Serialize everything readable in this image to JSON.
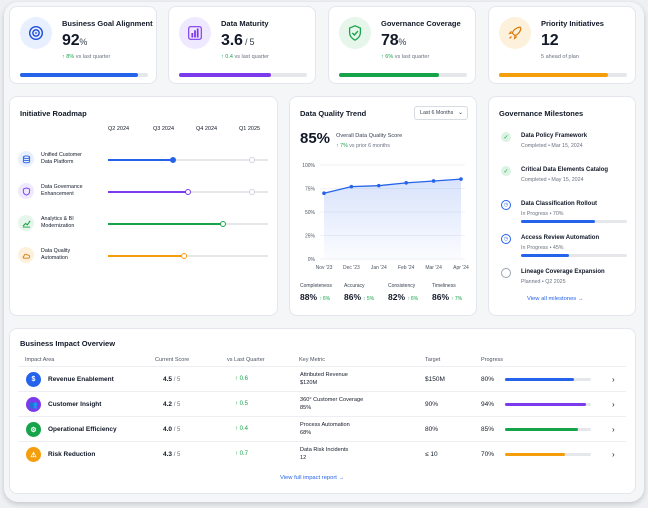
{
  "kpis": [
    {
      "title": "Business Goal Alignment",
      "value": "92",
      "unit": "%",
      "delta": "↑ 8%",
      "sub": " vs last quarter",
      "progress": 0.92,
      "color": "#2563eb",
      "icon": "target-icon"
    },
    {
      "title": "Data Maturity",
      "value": "3.6",
      "unit": " / 5",
      "delta": "↑ 0.4",
      "sub": " vs last quarter",
      "progress": 0.72,
      "color": "#7c3aed",
      "icon": "bar-chart-icon"
    },
    {
      "title": "Governance Coverage",
      "value": "78",
      "unit": "%",
      "delta": "↑ 6%",
      "sub": " vs last quarter",
      "progress": 0.78,
      "color": "#16a34a",
      "icon": "shield-check-icon"
    },
    {
      "title": "Priority Initiatives",
      "value": "12",
      "unit": "",
      "delta": "",
      "sub": "5 ahead of plan",
      "progress": 0.85,
      "color": "#f59e0b",
      "icon": "rocket-icon"
    }
  ],
  "roadmap": {
    "title": "Initiative Roadmap",
    "quarters": [
      "Q2 2024",
      "Q3 2024",
      "Q4 2024",
      "Q1 2025"
    ],
    "items": [
      {
        "label1": "Unified Customer",
        "label2": "Data Platform",
        "color": "#2563eb",
        "progress": 0.41,
        "icon": "database-icon"
      },
      {
        "label1": "Data Governance",
        "label2": "Enhancement",
        "color": "#7c3aed",
        "progress": 0.51,
        "icon": "shield-icon"
      },
      {
        "label1": "Analytics & BI",
        "label2": "Modernization",
        "color": "#16a34a",
        "progress": 0.72,
        "icon": "trend-icon"
      },
      {
        "label1": "Data Quality",
        "label2": "Automation",
        "color": "#f59e0b",
        "progress": 0.48,
        "icon": "cloud-icon"
      }
    ]
  },
  "quality": {
    "title": "Data Quality Trend",
    "range": "Last 6 Months",
    "score": "85%",
    "score_label": "Overall Data Quality Score",
    "delta": "↑ 7%",
    "delta_sub": " vs prior 6 months",
    "metrics": [
      {
        "name": "Completeness",
        "value": "88%",
        "delta": "↑ 6%"
      },
      {
        "name": "Accuracy",
        "value": "86%",
        "delta": "↑ 5%"
      },
      {
        "name": "Consistency",
        "value": "82%",
        "delta": "↑ 6%"
      },
      {
        "name": "Timeliness",
        "value": "86%",
        "delta": "↑ 7%"
      }
    ]
  },
  "chart_data": {
    "type": "area",
    "x": [
      "Nov '23",
      "Dec '23",
      "Jan '24",
      "Feb '24",
      "Mar '24",
      "Apr '24"
    ],
    "y_ticks": [
      "100%",
      "75%",
      "50%",
      "25%",
      "0%"
    ],
    "ylim": [
      0,
      100
    ],
    "values": [
      70,
      77,
      78,
      81,
      83,
      85
    ]
  },
  "milestones": {
    "title": "Governance Milestones",
    "link": "View all milestones",
    "items": [
      {
        "name": "Data Policy Framework",
        "status": "Completed",
        "detail": "  •  Mar 15, 2024",
        "kind": "done",
        "progress": null
      },
      {
        "name": "Critical Data Elements Catalog",
        "status": "Completed",
        "detail": "  •  May 15, 2024",
        "kind": "done",
        "progress": null
      },
      {
        "name": "Data Classification Rollout",
        "status": "In Progress",
        "detail": "  •  70%",
        "kind": "progress",
        "progress": 0.7
      },
      {
        "name": "Access Review Automation",
        "status": "In Progress",
        "detail": "  •  45%",
        "kind": "progress",
        "progress": 0.45
      },
      {
        "name": "Lineage Coverage Expansion",
        "status": "Planned",
        "detail": "  •  Q2 2025",
        "kind": "planned",
        "progress": null
      }
    ]
  },
  "impact": {
    "title": "Business Impact Overview",
    "headers": [
      "Impact Area",
      "Current Score",
      "vs Last Quarter",
      "Key Metric",
      "Target",
      "Progress"
    ],
    "link": "View full impact report",
    "rows": [
      {
        "area": "Revenue Enablement",
        "score": "4.5",
        "of": " / 5",
        "delta": "↑ 0.6",
        "metric1": "Attributed Revenue",
        "metric2": "$120M",
        "target": "$150M",
        "pct": "80%",
        "progress": 0.8,
        "color": "#2563eb",
        "icon": "dollar-icon"
      },
      {
        "area": "Customer Insight",
        "score": "4.2",
        "of": " / 5",
        "delta": "↑ 0.5",
        "metric1": "360° Customer Coverage",
        "metric2": "85%",
        "target": "90%",
        "pct": "94%",
        "progress": 0.94,
        "color": "#7c3aed",
        "icon": "users-icon"
      },
      {
        "area": "Operational Efficiency",
        "score": "4.0",
        "of": " / 5",
        "delta": "↑ 0.4",
        "metric1": "Process Automation",
        "metric2": "68%",
        "target": "80%",
        "pct": "85%",
        "progress": 0.85,
        "color": "#16a34a",
        "icon": "gear-icon"
      },
      {
        "area": "Risk Reduction",
        "score": "4.3",
        "of": " / 5",
        "delta": "↑ 0.7",
        "metric1": "Data Risk Incidents",
        "metric2": "12",
        "target": "≤ 10",
        "pct": "70%",
        "progress": 0.7,
        "color": "#f59e0b",
        "icon": "warning-icon"
      }
    ]
  }
}
